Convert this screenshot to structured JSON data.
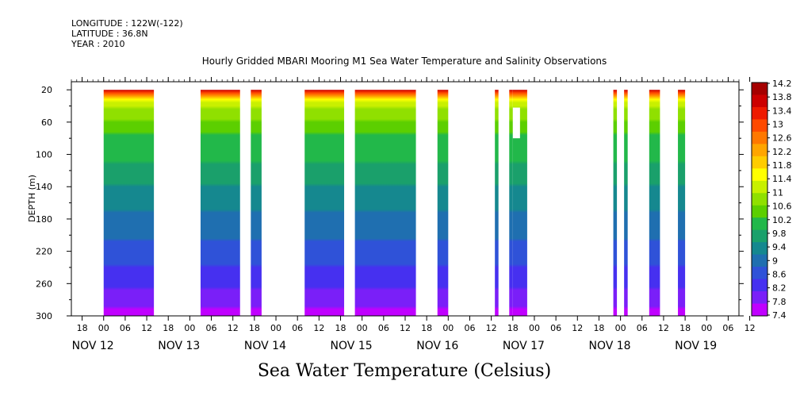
{
  "header": {
    "longitude": "LONGITUDE : 122W(-122)",
    "latitude": "LATITUDE : 36.8N",
    "year": "YEAR : 2010"
  },
  "title": "Hourly Gridded MBARI Mooring M1 Sea Water Temperature and Salinity Observations",
  "footer": "Sea Water Temperature (Celsius)",
  "chart_data": {
    "type": "heatmap",
    "title": "Hourly Gridded MBARI Mooring M1 Sea Water Temperature and Salinity Observations",
    "ylabel": "DEPTH (m)",
    "colorbar_label": "Sea Water Temperature (Celsius)",
    "y_ticks": [
      20,
      60,
      100,
      140,
      180,
      220,
      260,
      300
    ],
    "ylim": [
      300,
      10
    ],
    "x_hour_ticks": [
      "18",
      "00",
      "06",
      "12",
      "18",
      "00",
      "06",
      "12",
      "18",
      "00",
      "06",
      "12",
      "18",
      "00",
      "06",
      "12",
      "18",
      "00",
      "06",
      "12",
      "18",
      "00",
      "06",
      "12",
      "18",
      "00",
      "06",
      "12",
      "18",
      "00",
      "06",
      "12"
    ],
    "x_day_labels": [
      "NOV 12",
      "NOV 13",
      "NOV 14",
      "NOV 15",
      "NOV 16",
      "NOV 17",
      "NOV 18",
      "NOV 19"
    ],
    "xlim_hours": [
      -9,
      177
    ],
    "colorbar_ticks": [
      "14.2",
      "13.8",
      "13.4",
      "13",
      "12.6",
      "12.2",
      "11.8",
      "11.4",
      "11",
      "10.6",
      "10.2",
      "9.8",
      "9.4",
      "9",
      "8.6",
      "8.2",
      "7.8",
      "7.4"
    ],
    "colorbar_colors": [
      "#a50000",
      "#cc0000",
      "#ee1a00",
      "#ff4a00",
      "#ff7800",
      "#ffa500",
      "#ffcc00",
      "#ffff00",
      "#c8f000",
      "#90e000",
      "#5ccf00",
      "#22b84a",
      "#1aa06b",
      "#15888f",
      "#1f6fb0",
      "#2f52d8",
      "#4630f0",
      "#7a1ff8",
      "#c000ff"
    ],
    "data_segments": [
      {
        "start_hour": 0,
        "end_hour": 14,
        "depth_top": 20,
        "depth_bottom": 300
      },
      {
        "start_hour": 27,
        "end_hour": 38,
        "depth_top": 20,
        "depth_bottom": 300
      },
      {
        "start_hour": 41,
        "end_hour": 44,
        "depth_top": 20,
        "depth_bottom": 300
      },
      {
        "start_hour": 56,
        "end_hour": 67,
        "depth_top": 20,
        "depth_bottom": 300
      },
      {
        "start_hour": 70,
        "end_hour": 87,
        "depth_top": 20,
        "depth_bottom": 300
      },
      {
        "start_hour": 93,
        "end_hour": 96,
        "depth_top": 20,
        "depth_bottom": 300
      },
      {
        "start_hour": 109,
        "end_hour": 110,
        "depth_top": 20,
        "depth_bottom": 300
      },
      {
        "start_hour": 113,
        "end_hour": 114,
        "depth_top": 20,
        "depth_bottom": 300
      },
      {
        "start_hour": 114,
        "end_hour": 118,
        "depth_top": 20,
        "depth_bottom": 300
      },
      {
        "start_hour": 142,
        "end_hour": 143,
        "depth_top": 20,
        "depth_bottom": 300
      },
      {
        "start_hour": 145,
        "end_hour": 146,
        "depth_top": 20,
        "depth_bottom": 300
      },
      {
        "start_hour": 152,
        "end_hour": 155,
        "depth_top": 20,
        "depth_bottom": 300
      },
      {
        "start_hour": 160,
        "end_hour": 162,
        "depth_top": 20,
        "depth_bottom": 300
      }
    ],
    "missing_patches": [
      {
        "start_hour": 114,
        "end_hour": 116,
        "depth_top": 42,
        "depth_bottom": 80
      }
    ],
    "temperature_profile": [
      {
        "depth": 20,
        "temp": 13.6
      },
      {
        "depth": 25,
        "temp": 12.6
      },
      {
        "depth": 32,
        "temp": 11.5
      },
      {
        "depth": 45,
        "temp": 10.9
      },
      {
        "depth": 70,
        "temp": 10.3
      },
      {
        "depth": 110,
        "temp": 9.9
      },
      {
        "depth": 150,
        "temp": 9.4
      },
      {
        "depth": 190,
        "temp": 9.0
      },
      {
        "depth": 230,
        "temp": 8.6
      },
      {
        "depth": 260,
        "temp": 8.2
      },
      {
        "depth": 285,
        "temp": 7.9
      },
      {
        "depth": 300,
        "temp": 7.5
      }
    ]
  }
}
